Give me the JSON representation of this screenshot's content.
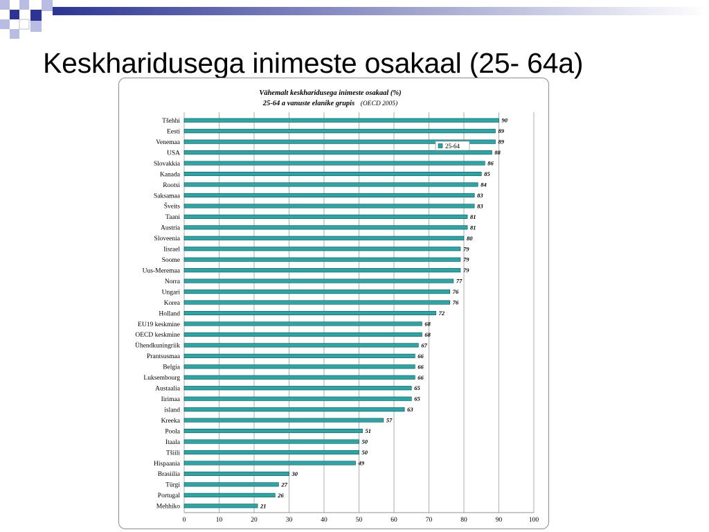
{
  "slide": {
    "title": "Keskharidusega inimeste osakaal (25- 64a)"
  },
  "colors": {
    "bar": "#2aa6a6",
    "bar_stroke": "#0d4d4d",
    "deco_dark": "#2c3593",
    "deco_light": "#b9bde3"
  },
  "chart_data": {
    "type": "bar",
    "orientation": "horizontal",
    "title": "Vähemalt keskharidusega inimeste  osakaal (%)",
    "subtitle": "25-64 a vanuste elanike grupis",
    "source_note": "(OECD 2005)",
    "legend": "25-64",
    "legend_position": "top-right",
    "xlim": [
      0,
      100
    ],
    "xticks": [
      0,
      10,
      20,
      30,
      40,
      50,
      60,
      70,
      80,
      90,
      100
    ],
    "grid": true,
    "categories": [
      "Tšehhi",
      "Eesti",
      "Venemaa",
      "USA",
      "Slovakkia",
      "Kanada",
      "Rootsi",
      "Saksamaa",
      "Šveits",
      "Taani",
      "Austria",
      "Sloveenia",
      "Iisrael",
      "Soome",
      "Uus-Meremaa",
      "Norra",
      "Ungari",
      "Korea",
      "Holland",
      "EU19  keskmine",
      "OECD keskmine",
      "Ühendkuningriik",
      "Prantsusmaa",
      "Belgia",
      "Luksembourg",
      "Austaalia",
      "Iirimaa",
      "island",
      "Kreeka",
      "Poola",
      "Itaala",
      "Tšiili",
      "Hispaania",
      "Brasiilia",
      "Türgi",
      "Portugal",
      "Mehhiko"
    ],
    "values": [
      90,
      89,
      89,
      88,
      86,
      85,
      84,
      83,
      83,
      81,
      81,
      80,
      79,
      79,
      79,
      77,
      76,
      76,
      72,
      68,
      68,
      67,
      66,
      66,
      66,
      65,
      65,
      63,
      57,
      51,
      50,
      50,
      49,
      30,
      27,
      26,
      21
    ],
    "value_labels": [
      "90",
      "89",
      "89",
      "88",
      "86",
      "85",
      "84",
      "83",
      "83",
      "81",
      "81",
      "80",
      "79",
      "79",
      "79",
      "77",
      "76",
      "76",
      "72",
      "68",
      "68",
      "67",
      "66",
      "66",
      "66",
      "65",
      "65",
      "63",
      "57",
      "51",
      "50",
      "50",
      "49",
      "30",
      "27",
      "26",
      "21"
    ]
  }
}
